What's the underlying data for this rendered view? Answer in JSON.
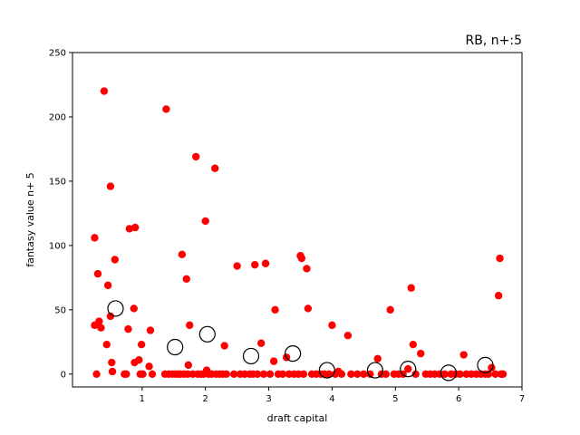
{
  "chart_data": {
    "type": "scatter",
    "title": "RB, n+:5",
    "xlabel": "draft capital",
    "ylabel": "fantasy value n+ 5",
    "xlim": [
      -0.1,
      7.0
    ],
    "ylim": [
      -10,
      250
    ],
    "xticks": [
      1,
      2,
      3,
      4,
      5,
      6,
      7
    ],
    "yticks": [
      0,
      50,
      100,
      150,
      200,
      250
    ],
    "grid": false,
    "legend": "none",
    "series": [
      {
        "marker": "filled-circle",
        "color": "#ff0000",
        "points": [
          [
            0.25,
            106
          ],
          [
            0.25,
            38
          ],
          [
            0.28,
            0
          ],
          [
            0.3,
            78
          ],
          [
            0.32,
            41
          ],
          [
            0.35,
            36
          ],
          [
            0.4,
            220
          ],
          [
            0.44,
            23
          ],
          [
            0.46,
            69
          ],
          [
            0.5,
            146
          ],
          [
            0.5,
            45
          ],
          [
            0.52,
            9
          ],
          [
            0.53,
            2
          ],
          [
            0.57,
            89
          ],
          [
            0.72,
            0
          ],
          [
            0.75,
            0
          ],
          [
            0.78,
            35
          ],
          [
            0.8,
            113
          ],
          [
            0.87,
            51
          ],
          [
            0.89,
            114
          ],
          [
            0.88,
            9
          ],
          [
            0.95,
            11
          ],
          [
            0.97,
            0
          ],
          [
            0.99,
            23
          ],
          [
            1.01,
            0
          ],
          [
            1.11,
            6
          ],
          [
            1.13,
            34
          ],
          [
            1.16,
            0
          ],
          [
            1.36,
            0
          ],
          [
            1.38,
            206
          ],
          [
            1.42,
            0
          ],
          [
            1.48,
            0
          ],
          [
            1.53,
            0
          ],
          [
            1.57,
            0
          ],
          [
            1.6,
            0
          ],
          [
            1.63,
            93
          ],
          [
            1.66,
            0
          ],
          [
            1.7,
            74
          ],
          [
            1.72,
            0
          ],
          [
            1.73,
            7
          ],
          [
            1.75,
            38
          ],
          [
            1.8,
            0
          ],
          [
            1.85,
            169
          ],
          [
            1.88,
            0
          ],
          [
            1.93,
            0
          ],
          [
            1.97,
            0
          ],
          [
            2.0,
            119
          ],
          [
            2.02,
            3
          ],
          [
            2.05,
            0
          ],
          [
            2.1,
            0
          ],
          [
            2.15,
            160
          ],
          [
            2.17,
            0
          ],
          [
            2.22,
            0
          ],
          [
            2.27,
            0
          ],
          [
            2.3,
            22
          ],
          [
            2.33,
            0
          ],
          [
            2.45,
            0
          ],
          [
            2.5,
            84
          ],
          [
            2.55,
            0
          ],
          [
            2.62,
            0
          ],
          [
            2.7,
            0
          ],
          [
            2.75,
            0
          ],
          [
            2.78,
            85
          ],
          [
            2.82,
            0
          ],
          [
            2.88,
            24
          ],
          [
            2.92,
            0
          ],
          [
            2.95,
            86
          ],
          [
            3.02,
            0
          ],
          [
            3.08,
            10
          ],
          [
            3.1,
            50
          ],
          [
            3.15,
            0
          ],
          [
            3.22,
            0
          ],
          [
            3.28,
            13
          ],
          [
            3.32,
            0
          ],
          [
            3.4,
            0
          ],
          [
            3.47,
            0
          ],
          [
            3.5,
            92
          ],
          [
            3.52,
            90
          ],
          [
            3.55,
            0
          ],
          [
            3.6,
            82
          ],
          [
            3.62,
            51
          ],
          [
            3.68,
            0
          ],
          [
            3.75,
            0
          ],
          [
            3.82,
            0
          ],
          [
            3.88,
            0
          ],
          [
            3.95,
            0
          ],
          [
            4.0,
            38
          ],
          [
            4.05,
            0
          ],
          [
            4.1,
            2
          ],
          [
            4.15,
            0
          ],
          [
            4.25,
            30
          ],
          [
            4.3,
            0
          ],
          [
            4.4,
            0
          ],
          [
            4.5,
            0
          ],
          [
            4.6,
            0
          ],
          [
            4.72,
            12
          ],
          [
            4.78,
            0
          ],
          [
            4.85,
            0
          ],
          [
            4.92,
            50
          ],
          [
            4.98,
            0
          ],
          [
            5.05,
            0
          ],
          [
            5.12,
            0
          ],
          [
            5.2,
            4
          ],
          [
            5.25,
            67
          ],
          [
            5.28,
            23
          ],
          [
            5.32,
            0
          ],
          [
            5.4,
            16
          ],
          [
            5.48,
            0
          ],
          [
            5.55,
            0
          ],
          [
            5.62,
            0
          ],
          [
            5.7,
            0
          ],
          [
            5.78,
            0
          ],
          [
            5.88,
            0
          ],
          [
            5.95,
            0
          ],
          [
            6.02,
            0
          ],
          [
            6.08,
            15
          ],
          [
            6.12,
            0
          ],
          [
            6.2,
            0
          ],
          [
            6.28,
            0
          ],
          [
            6.35,
            0
          ],
          [
            6.42,
            0
          ],
          [
            6.47,
            0
          ],
          [
            6.52,
            5
          ],
          [
            6.58,
            0
          ],
          [
            6.63,
            61
          ],
          [
            6.65,
            90
          ],
          [
            6.67,
            0
          ],
          [
            6.7,
            0
          ]
        ]
      },
      {
        "marker": "open-circle",
        "color": "#000000",
        "points": [
          [
            0.58,
            51
          ],
          [
            1.52,
            21
          ],
          [
            2.03,
            31
          ],
          [
            2.72,
            14
          ],
          [
            3.38,
            16
          ],
          [
            3.92,
            3
          ],
          [
            4.68,
            3
          ],
          [
            5.2,
            4
          ],
          [
            5.84,
            1
          ],
          [
            6.42,
            7
          ]
        ]
      }
    ]
  }
}
